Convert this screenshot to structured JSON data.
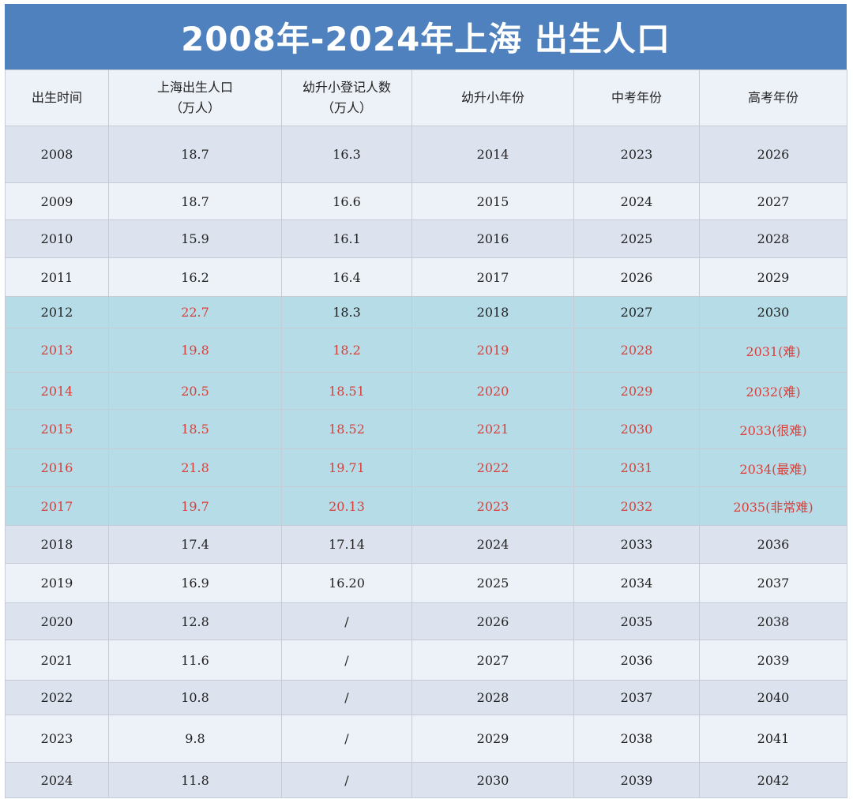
{
  "title": "2008年-2024年上海 出生人口",
  "headers": [
    [
      "出生时间"
    ],
    [
      "上海出生人口",
      "（万人）"
    ],
    [
      "幼升小登记人数",
      "（万人）"
    ],
    [
      "幼升小年份"
    ],
    [
      "中考年份"
    ],
    [
      "高考年份"
    ]
  ],
  "rows": [
    {
      "birth_year": "2008",
      "births": "18.7",
      "registrations": "16.3",
      "primary_year": "2014",
      "zhongkao_year": "2023",
      "gaokao_year": "2026"
    },
    {
      "birth_year": "2009",
      "births": "18.7",
      "registrations": "16.6",
      "primary_year": "2015",
      "zhongkao_year": "2024",
      "gaokao_year": "2027"
    },
    {
      "birth_year": "2010",
      "births": "15.9",
      "registrations": "16.1",
      "primary_year": "2016",
      "zhongkao_year": "2025",
      "gaokao_year": "2028"
    },
    {
      "birth_year": "2011",
      "births": "16.2",
      "registrations": "16.4",
      "primary_year": "2017",
      "zhongkao_year": "2026",
      "gaokao_year": "2029"
    },
    {
      "birth_year": "2012",
      "births": "22.7",
      "registrations": "18.3",
      "primary_year": "2018",
      "zhongkao_year": "2027",
      "gaokao_year": "2030"
    },
    {
      "birth_year": "2013",
      "births": "19.8",
      "registrations": "18.2",
      "primary_year": "2019",
      "zhongkao_year": "2028",
      "gaokao_year": "2031(难)"
    },
    {
      "birth_year": "2014",
      "births": "20.5",
      "registrations": "18.51",
      "primary_year": "2020",
      "zhongkao_year": "2029",
      "gaokao_year": "2032(难)"
    },
    {
      "birth_year": "2015",
      "births": "18.5",
      "registrations": "18.52",
      "primary_year": "2021",
      "zhongkao_year": "2030",
      "gaokao_year": "2033(很难)"
    },
    {
      "birth_year": "2016",
      "births": "21.8",
      "registrations": "19.71",
      "primary_year": "2022",
      "zhongkao_year": "2031",
      "gaokao_year": "2034(最难)"
    },
    {
      "birth_year": "2017",
      "births": "19.7",
      "registrations": "20.13",
      "primary_year": "2023",
      "zhongkao_year": "2032",
      "gaokao_year": "2035(非常难)"
    },
    {
      "birth_year": "2018",
      "births": "17.4",
      "registrations": "17.14",
      "primary_year": "2024",
      "zhongkao_year": "2033",
      "gaokao_year": "2036"
    },
    {
      "birth_year": "2019",
      "births": "16.9",
      "registrations": "16.20",
      "primary_year": "2025",
      "zhongkao_year": "2034",
      "gaokao_year": "2037"
    },
    {
      "birth_year": "2020",
      "births": "12.8",
      "registrations": "/",
      "primary_year": "2026",
      "zhongkao_year": "2035",
      "gaokao_year": "2038"
    },
    {
      "birth_year": "2021",
      "births": "11.6",
      "registrations": "/",
      "primary_year": "2027",
      "zhongkao_year": "2036",
      "gaokao_year": "2039"
    },
    {
      "birth_year": "2022",
      "births": "10.8",
      "registrations": "/",
      "primary_year": "2028",
      "zhongkao_year": "2037",
      "gaokao_year": "2040"
    },
    {
      "birth_year": "2023",
      "births": "9.8",
      "registrations": "/",
      "primary_year": "2029",
      "zhongkao_year": "2038",
      "gaokao_year": "2041"
    },
    {
      "birth_year": "2024",
      "births": "11.8",
      "registrations": "/",
      "primary_year": "2030",
      "zhongkao_year": "2039",
      "gaokao_year": "2042"
    }
  ],
  "colors": {
    "banner": "#4e81bd",
    "highlight_band": "#b6dce7",
    "highlight_text": "#d9403a",
    "row_band_dark": "#dce3ee",
    "row_band_light": "#edf1f8"
  }
}
